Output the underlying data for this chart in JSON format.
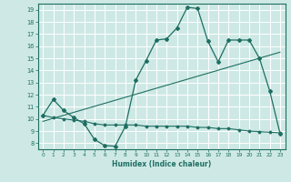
{
  "title": "",
  "xlabel": "Humidex (Indice chaleur)",
  "xlim": [
    -0.5,
    23.5
  ],
  "ylim": [
    7.5,
    19.5
  ],
  "xticks": [
    0,
    1,
    2,
    3,
    4,
    5,
    6,
    7,
    8,
    9,
    10,
    11,
    12,
    13,
    14,
    15,
    16,
    17,
    18,
    19,
    20,
    21,
    22,
    23
  ],
  "yticks": [
    8,
    9,
    10,
    11,
    12,
    13,
    14,
    15,
    16,
    17,
    18,
    19
  ],
  "bg_color": "#cee9e5",
  "line_color": "#1e6e62",
  "grid_color": "#ffffff",
  "line1_x": [
    0,
    1,
    2,
    3,
    4,
    5,
    6,
    7,
    8,
    9,
    10,
    11,
    12,
    13,
    14,
    15,
    16,
    17,
    18,
    19,
    20,
    21,
    22,
    23
  ],
  "line1_y": [
    10.3,
    11.6,
    10.7,
    10.1,
    9.6,
    8.3,
    7.8,
    7.75,
    9.4,
    13.2,
    14.8,
    16.5,
    16.6,
    17.5,
    19.2,
    19.1,
    16.4,
    14.7,
    16.5,
    16.5,
    16.5,
    15.0,
    12.3,
    8.8
  ],
  "line2_x": [
    0,
    23
  ],
  "line2_y": [
    9.8,
    15.5
  ],
  "line3_x": [
    0,
    1,
    2,
    3,
    4,
    5,
    6,
    7,
    8,
    9,
    10,
    11,
    12,
    13,
    14,
    15,
    16,
    17,
    18,
    19,
    20,
    21,
    22,
    23
  ],
  "line3_y": [
    10.3,
    10.1,
    10.0,
    9.9,
    9.8,
    9.6,
    9.5,
    9.5,
    9.5,
    9.5,
    9.4,
    9.4,
    9.4,
    9.4,
    9.4,
    9.3,
    9.3,
    9.2,
    9.2,
    9.1,
    9.0,
    8.95,
    8.9,
    8.85
  ]
}
